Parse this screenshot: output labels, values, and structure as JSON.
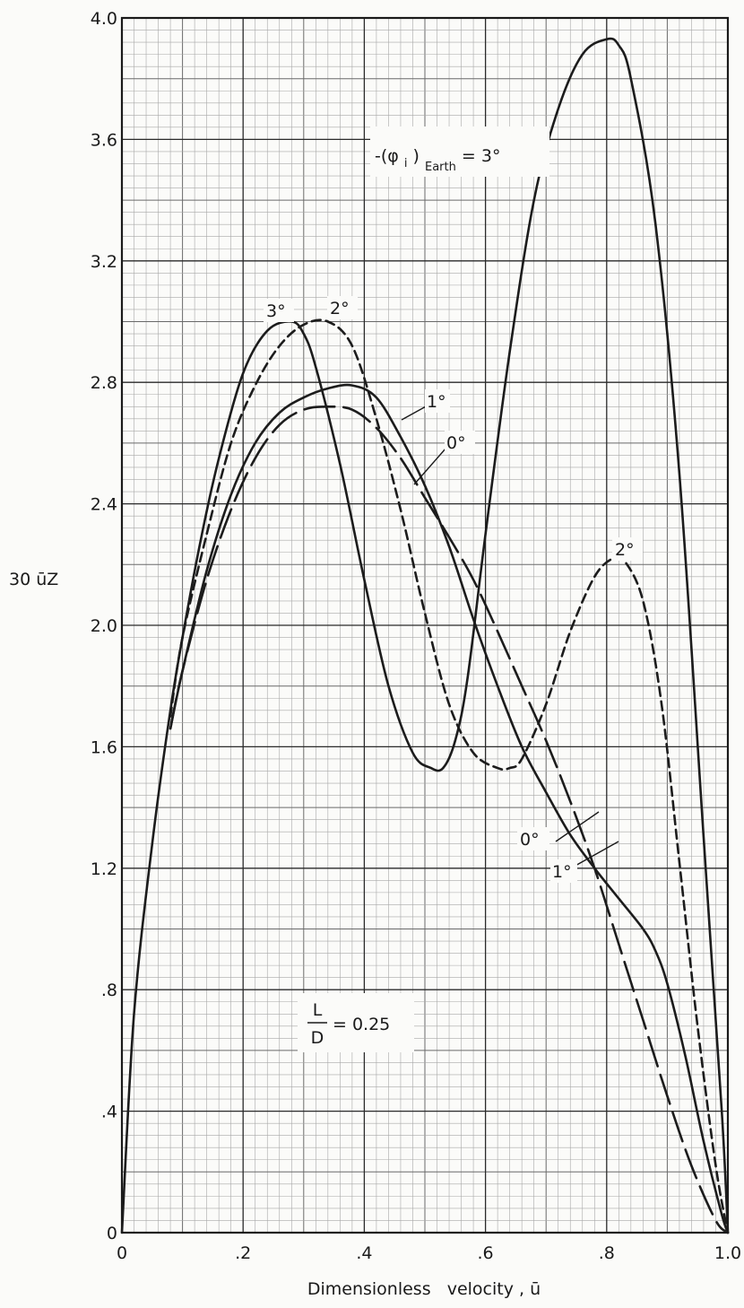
{
  "chart_data": {
    "type": "line",
    "xlabel": "Dimensionless   velocity , ū",
    "ylabel": "30 ūZ",
    "xlim": [
      0,
      1.0
    ],
    "ylim": [
      0,
      4.0
    ],
    "x_ticks": [
      {
        "value": 0,
        "label": "0"
      },
      {
        "value": 0.2,
        "label": ".2"
      },
      {
        "value": 0.4,
        "label": ".4"
      },
      {
        "value": 0.6,
        "label": ".6"
      },
      {
        "value": 0.8,
        "label": ".8"
      },
      {
        "value": 1.0,
        "label": "1.0"
      }
    ],
    "y_ticks": [
      {
        "value": 0,
        "label": "0"
      },
      {
        "value": 0.4,
        "label": ".4"
      },
      {
        "value": 0.8,
        "label": ".8"
      },
      {
        "value": 1.2,
        "label": "1.2"
      },
      {
        "value": 1.6,
        "label": "1.6"
      },
      {
        "value": 2.0,
        "label": "2.0"
      },
      {
        "value": 2.4,
        "label": "2.4"
      },
      {
        "value": 2.8,
        "label": "2.8"
      },
      {
        "value": 3.2,
        "label": "3.2"
      },
      {
        "value": 3.6,
        "label": "3.6"
      },
      {
        "value": 4.0,
        "label": "4.0"
      }
    ],
    "grid": true,
    "grid_minor_per_major": 10,
    "annotations": {
      "condition_prefix": "-(φ",
      "condition_sub1": "i",
      "condition_close": ")",
      "condition_sub2": "Earth",
      "condition_suffix": " = 3°",
      "ld_num": "L",
      "ld_den": "D",
      "ld_value": "= 0.25"
    },
    "series": [
      {
        "name": "3°",
        "style": "solid",
        "x": [
          0,
          0.02,
          0.05,
          0.08,
          0.1,
          0.13,
          0.16,
          0.2,
          0.24,
          0.28,
          0.3,
          0.32,
          0.36,
          0.4,
          0.44,
          0.48,
          0.51,
          0.53,
          0.55,
          0.57,
          0.6,
          0.64,
          0.68,
          0.72,
          0.76,
          0.8,
          0.82,
          0.84,
          0.88,
          0.92,
          0.96,
          0.99,
          1.0
        ],
        "y": [
          0,
          0.72,
          1.28,
          1.72,
          1.96,
          2.28,
          2.55,
          2.83,
          2.97,
          3.0,
          2.96,
          2.85,
          2.53,
          2.15,
          1.8,
          1.58,
          1.53,
          1.53,
          1.62,
          1.82,
          2.3,
          2.9,
          3.4,
          3.7,
          3.88,
          3.93,
          3.91,
          3.8,
          3.33,
          2.5,
          1.3,
          0.4,
          0
        ]
      },
      {
        "name": "2°",
        "style": "dashed",
        "x": [
          0.08,
          0.1,
          0.14,
          0.18,
          0.22,
          0.26,
          0.3,
          0.34,
          0.38,
          0.42,
          0.46,
          0.5,
          0.54,
          0.58,
          0.62,
          0.64,
          0.66,
          0.7,
          0.74,
          0.78,
          0.81,
          0.83,
          0.86,
          0.89,
          0.92,
          0.95,
          0.98,
          1.0
        ],
        "y": [
          1.7,
          1.96,
          2.3,
          2.6,
          2.79,
          2.92,
          2.99,
          3.0,
          2.92,
          2.68,
          2.38,
          2.04,
          1.74,
          1.58,
          1.53,
          1.53,
          1.56,
          1.74,
          1.98,
          2.16,
          2.22,
          2.21,
          2.08,
          1.75,
          1.22,
          0.68,
          0.22,
          0
        ]
      },
      {
        "name": "1°",
        "style": "solid",
        "x": [
          0.08,
          0.1,
          0.14,
          0.18,
          0.22,
          0.26,
          0.3,
          0.34,
          0.38,
          0.42,
          0.46,
          0.5,
          0.54,
          0.58,
          0.62,
          0.66,
          0.7,
          0.74,
          0.78,
          0.82,
          0.86,
          0.88,
          0.9,
          0.93,
          0.96,
          0.99,
          1.0
        ],
        "y": [
          1.66,
          1.85,
          2.18,
          2.43,
          2.6,
          2.7,
          2.75,
          2.78,
          2.79,
          2.75,
          2.62,
          2.46,
          2.26,
          2.02,
          1.8,
          1.6,
          1.45,
          1.31,
          1.2,
          1.1,
          1.0,
          0.93,
          0.82,
          0.58,
          0.3,
          0.06,
          0
        ]
      },
      {
        "name": "0°",
        "style": "longdash",
        "x": [
          0.08,
          0.1,
          0.14,
          0.18,
          0.22,
          0.26,
          0.3,
          0.34,
          0.38,
          0.42,
          0.46,
          0.5,
          0.54,
          0.58,
          0.62,
          0.66,
          0.7,
          0.74,
          0.78,
          0.82,
          0.86,
          0.9,
          0.94,
          0.98,
          1.0
        ],
        "y": [
          1.66,
          1.85,
          2.15,
          2.38,
          2.55,
          2.66,
          2.71,
          2.72,
          2.71,
          2.65,
          2.55,
          2.42,
          2.29,
          2.15,
          1.98,
          1.8,
          1.62,
          1.42,
          1.2,
          0.95,
          0.7,
          0.45,
          0.22,
          0.04,
          0
        ]
      }
    ],
    "curve_labels": [
      {
        "name": "3°",
        "text": "3°"
      },
      {
        "name": "2° (peak)",
        "text": "2°"
      },
      {
        "name": "1° (top)",
        "text": "1°"
      },
      {
        "name": "0° (top)",
        "text": "0°"
      },
      {
        "name": "2° (right)",
        "text": "2°"
      },
      {
        "name": "0° (bottom)",
        "text": "0°"
      },
      {
        "name": "1° (bottom)",
        "text": "1°"
      }
    ]
  }
}
